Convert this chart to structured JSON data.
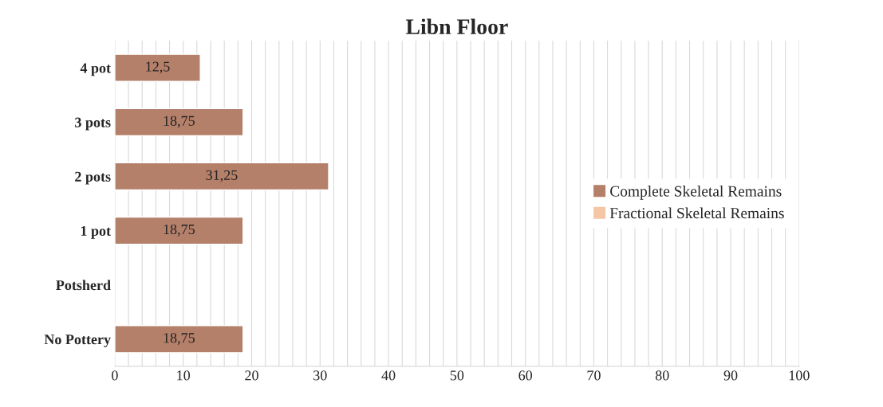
{
  "chart_data": {
    "type": "bar",
    "orientation": "horizontal",
    "title": "Libn Floor",
    "categories": [
      "4 pot",
      "3 pots",
      "2 pots",
      "1 pot",
      "Potsherd",
      "No Pottery"
    ],
    "series": [
      {
        "name": "Complete Skeletal Remains",
        "color": "#b5806a",
        "values": [
          12.5,
          18.75,
          31.25,
          18.75,
          null,
          18.75
        ],
        "value_labels": [
          "12,5",
          "18,75",
          "31,25",
          "18,75",
          null,
          "18,75"
        ]
      },
      {
        "name": "Fractional Skeletal Remains",
        "color": "#f5c6a5",
        "values": [
          null,
          null,
          null,
          null,
          null,
          null
        ]
      }
    ],
    "xlim": [
      0,
      100
    ],
    "xticks": [
      0,
      {
        "value": 2,
        "label": null
      },
      {
        "value": 4,
        "label": null
      },
      {
        "value": 6,
        "label": null
      },
      {
        "value": 8,
        "label": null
      },
      10,
      {
        "value": 12,
        "label": null
      },
      {
        "value": 14,
        "label": null
      },
      {
        "value": 16,
        "label": null
      },
      {
        "value": 18,
        "label": null
      },
      20,
      {
        "value": 22,
        "label": null
      },
      {
        "value": 24,
        "label": null
      },
      {
        "value": 26,
        "label": null
      },
      {
        "value": 28,
        "label": null
      },
      30,
      {
        "value": 32,
        "label": null
      },
      {
        "value": 34,
        "label": null
      },
      {
        "value": 36,
        "label": null
      },
      {
        "value": 38,
        "label": null
      },
      40,
      {
        "value": 42,
        "label": null
      },
      {
        "value": 44,
        "label": null
      },
      {
        "value": 46,
        "label": null
      },
      {
        "value": 48,
        "label": null
      },
      50,
      {
        "value": 52,
        "label": null
      },
      {
        "value": 54,
        "label": null
      },
      {
        "value": 56,
        "label": null
      },
      {
        "value": 58,
        "label": null
      },
      60,
      {
        "value": 62,
        "label": null
      },
      {
        "value": 64,
        "label": null
      },
      {
        "value": 66,
        "label": null
      },
      {
        "value": 68,
        "label": null
      },
      70,
      {
        "value": 72,
        "label": null
      },
      {
        "value": 74,
        "label": null
      },
      {
        "value": 76,
        "label": null
      },
      {
        "value": 78,
        "label": null
      },
      80,
      {
        "value": 82,
        "label": null
      },
      {
        "value": 84,
        "label": null
      },
      {
        "value": 86,
        "label": null
      },
      {
        "value": 88,
        "label": null
      },
      90,
      {
        "value": 92,
        "label": null
      },
      {
        "value": 94,
        "label": null
      },
      {
        "value": 96,
        "label": null
      },
      {
        "value": 98,
        "label": null
      },
      100
    ],
    "grid": "x",
    "legend": "right"
  }
}
